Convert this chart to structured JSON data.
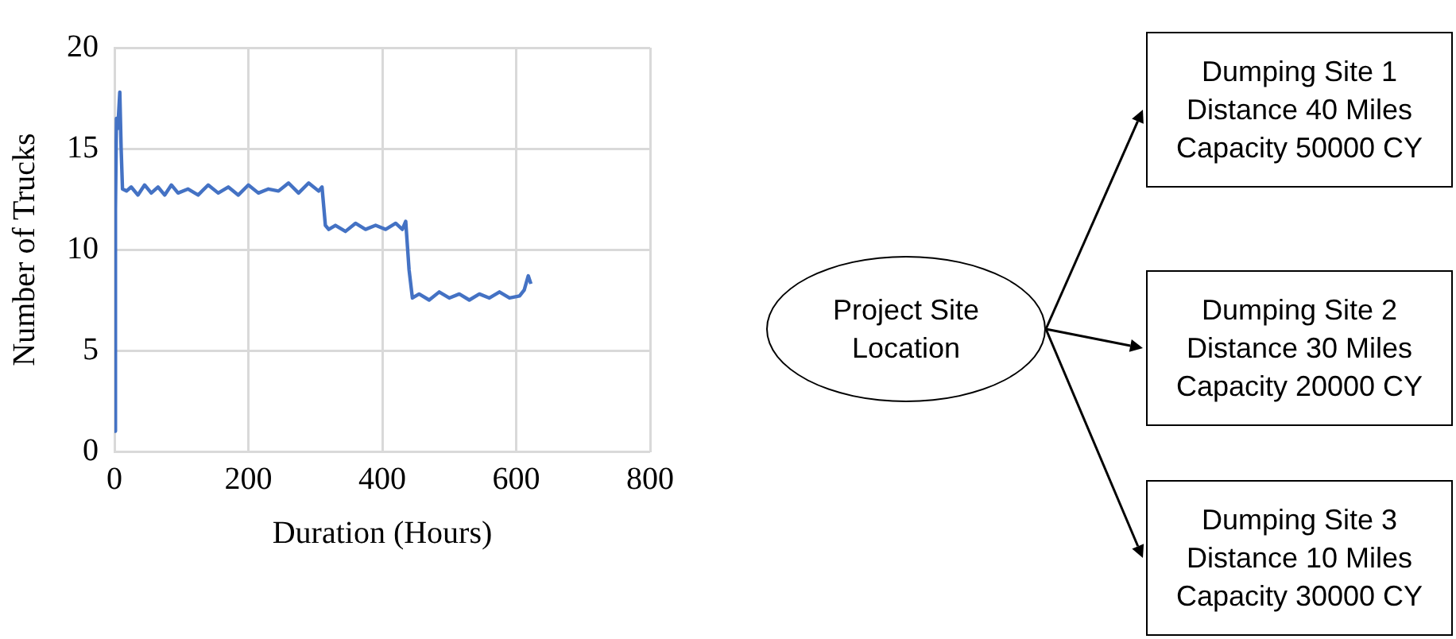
{
  "chart_data": [
    {
      "type": "line",
      "xlabel": "Duration (Hours)",
      "ylabel": "Number of Trucks",
      "xlim": [
        0,
        800
      ],
      "xticks": [
        0,
        200,
        400,
        600,
        800
      ],
      "ylim": [
        0,
        20
      ],
      "yticks": [
        0,
        5,
        10,
        15,
        20
      ],
      "grid": true,
      "legend": false,
      "marker": "none",
      "series": [
        {
          "color": "#4472c4",
          "x": [
            0,
            1.5,
            3,
            5,
            8,
            10,
            12,
            18,
            25,
            35,
            45,
            55,
            65,
            75,
            85,
            95,
            110,
            125,
            140,
            155,
            170,
            185,
            200,
            215,
            230,
            245,
            260,
            275,
            290,
            305,
            310,
            315,
            320,
            330,
            345,
            360,
            375,
            390,
            405,
            420,
            430,
            435,
            440,
            445,
            455,
            470,
            485,
            500,
            515,
            530,
            545,
            560,
            575,
            590,
            605,
            612,
            618,
            622
          ],
          "values": [
            1,
            12,
            16.5,
            16,
            17.8,
            15,
            13,
            12.9,
            13.1,
            12.7,
            13.2,
            12.8,
            13.1,
            12.7,
            13.2,
            12.8,
            13.0,
            12.7,
            13.2,
            12.8,
            13.1,
            12.7,
            13.2,
            12.8,
            13.0,
            12.9,
            13.3,
            12.8,
            13.3,
            12.9,
            13.1,
            11.2,
            11.0,
            11.2,
            10.9,
            11.3,
            11.0,
            11.2,
            11.0,
            11.3,
            11.0,
            11.4,
            9,
            7.6,
            7.8,
            7.5,
            7.9,
            7.6,
            7.8,
            7.5,
            7.8,
            7.6,
            7.9,
            7.6,
            7.7,
            8.0,
            8.7,
            8.3
          ]
        }
      ]
    },
    {
      "type": "other",
      "annotations": [
        "Project Site Location",
        "Dumping Site 1\nDistance 40 Miles\nCapacity 50000 CY",
        "Dumping Site 2\nDistance 30 Miles\nCapacity 20000 CY",
        "Dumping Site 3\nDistance 10 Miles\nCapacity 30000 CY"
      ]
    }
  ]
}
